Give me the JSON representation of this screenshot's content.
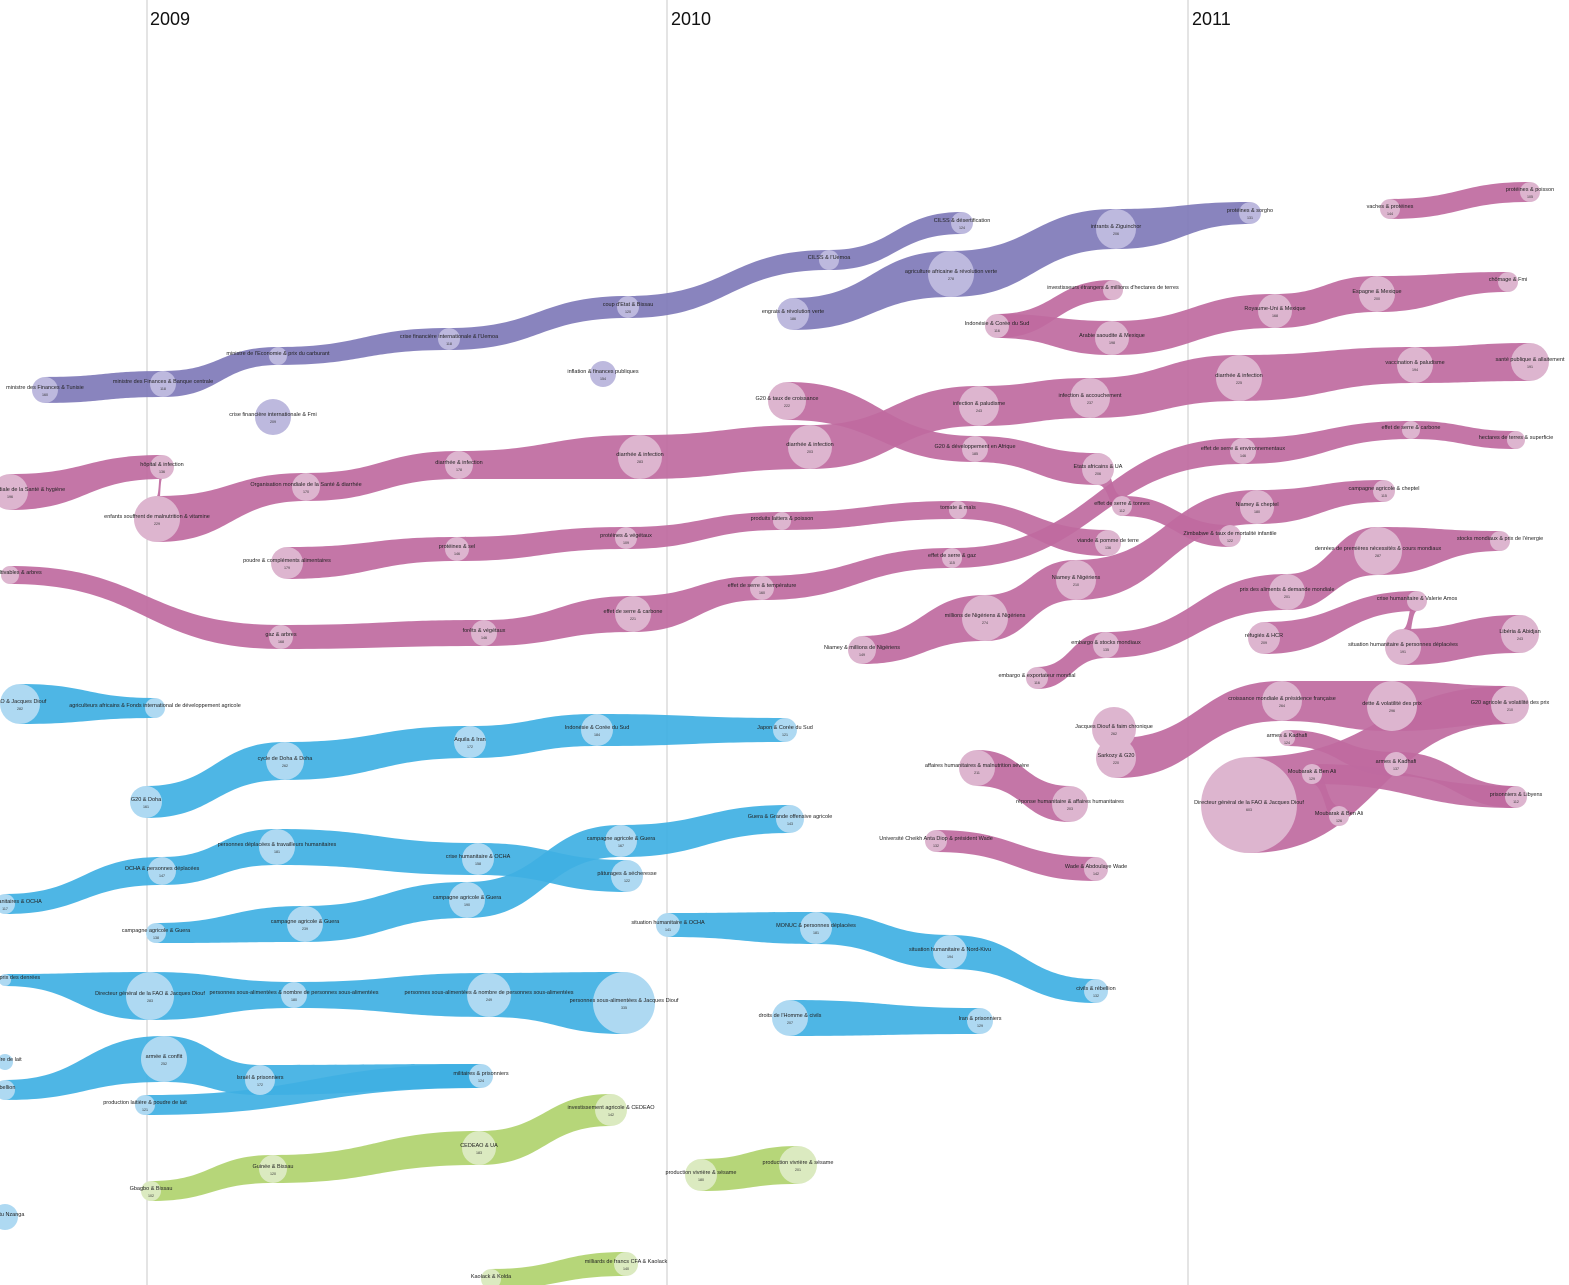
{
  "years": [
    "2009",
    "2010",
    "2011"
  ],
  "colors": {
    "purple": "#7f79b9",
    "purple_node": "#bdb9de",
    "magenta": "#bf6a9f",
    "magenta_node": "#ddb5cf",
    "blue": "#3fb0e3",
    "blue_node": "#aed9f2",
    "green": "#b0d36e",
    "green_node": "#dbeac0",
    "grid": "#c8c8c8"
  },
  "streams": [
    {
      "color": "purple",
      "nodes": [
        {
          "label": "ministre des Finances & Tunisie",
          "value": "160"
        },
        {
          "label": "ministre des Finances & Banque centrale",
          "value": "118"
        },
        {
          "label": "ministre de l'Economie & prix du carburant",
          "value": ""
        },
        {
          "label": "crise financière internationale & l'Uemoa",
          "value": "118"
        },
        {
          "label": "coup d'Etat & Bissau",
          "value": "120"
        },
        {
          "label": "CILSS & l'Uemoa",
          "value": ""
        },
        {
          "label": "CILSS & désertification",
          "value": "124"
        }
      ]
    },
    {
      "color": "purple",
      "nodes": [
        {
          "label": "crise financière internationale & Fmi",
          "value": "209"
        }
      ]
    },
    {
      "color": "purple",
      "nodes": [
        {
          "label": "inflation & finances publiques",
          "value": "154"
        }
      ]
    },
    {
      "color": "purple",
      "nodes": [
        {
          "label": "engrais & révolution verte",
          "value": "186"
        },
        {
          "label": "agriculture africaine & révolution verte",
          "value": "278"
        },
        {
          "label": "intrants & Ziguinchor",
          "value": "206"
        },
        {
          "label": "protéines & sorgho",
          "value": "131"
        }
      ]
    },
    {
      "color": "magenta",
      "nodes": [
        {
          "label": "vaches & protéines",
          "value": "144"
        },
        {
          "label": "protéines & poisson",
          "value": "105"
        }
      ]
    },
    {
      "color": "magenta",
      "nodes": [
        {
          "label": "investisseurs étrangers & millions d'hectares de terres",
          "value": ""
        },
        {
          "label": "Indonésie & Corée du Sud",
          "value": "116"
        },
        {
          "label": "Arabie saoudite & Mexique",
          "value": "198"
        },
        {
          "label": "Royaume-Uni & Mexique",
          "value": "168"
        },
        {
          "label": "Espagne & Mexique",
          "value": "200"
        },
        {
          "label": "chômage & Fmi",
          "value": ""
        }
      ]
    },
    {
      "color": "magenta",
      "nodes": [
        {
          "label": "Organisation mondiale de la Santé & hygiène",
          "value": "196"
        },
        {
          "label": "hôpital & infection",
          "value": "136"
        },
        {
          "label": "enfants souffrent de malnutrition & vitamine",
          "value": "229"
        },
        {
          "label": "Organisation mondiale de la Santé & diarrhée",
          "value": "170"
        },
        {
          "label": "diarrhée & infection",
          "value": "178"
        },
        {
          "label": "diarrhée & infection",
          "value": "283"
        },
        {
          "label": "diarrhée & infection",
          "value": "203"
        },
        {
          "label": "infection & paludisme",
          "value": "243"
        },
        {
          "label": "infection & accouchement",
          "value": "237"
        },
        {
          "label": "diarrhée & infection",
          "value": "225"
        },
        {
          "label": "vaccination & paludisme",
          "value": "194"
        },
        {
          "label": "santé publique & allaitement",
          "value": "191"
        }
      ]
    },
    {
      "color": "magenta",
      "nodes": [
        {
          "label": "G20 & taux de croissance",
          "value": "222"
        },
        {
          "label": "G20 & développement en Afrique",
          "value": "185"
        },
        {
          "label": "Etats africains & UA",
          "value": "206"
        },
        {
          "label": "effet de serre & tonnes",
          "value": "112"
        },
        {
          "label": "Zimbabwe & taux de mortalité infantile",
          "value": "122"
        }
      ]
    },
    {
      "color": "magenta",
      "nodes": [
        {
          "label": "poudre & compléments alimentaires",
          "value": "179"
        },
        {
          "label": "protéines & sel",
          "value": "146"
        },
        {
          "label": "protéines & végétaux",
          "value": "109"
        },
        {
          "label": "produits laitiers & poisson",
          "value": ""
        },
        {
          "label": "tomate & maïs",
          "value": ""
        },
        {
          "label": "viande & pomme de terre",
          "value": "136"
        }
      ]
    },
    {
      "color": "magenta",
      "nodes": [
        {
          "label": "terres cultivables & arbres",
          "value": ""
        },
        {
          "label": "gaz & arbres",
          "value": "168"
        },
        {
          "label": "forêts & végétaux",
          "value": "146"
        },
        {
          "label": "effet de serre & carbone",
          "value": "221"
        },
        {
          "label": "effet de serre & température",
          "value": "160"
        },
        {
          "label": "effet de serre & gaz",
          "value": "115"
        },
        {
          "label": "effet de serre & environnementaux",
          "value": "146"
        },
        {
          "label": "effet de serre & carbone",
          "value": ""
        },
        {
          "label": "hectares de terres & superficie",
          "value": ""
        }
      ]
    },
    {
      "color": "magenta",
      "nodes": [
        {
          "label": "Niamey & millions de Nigériens",
          "value": "149"
        },
        {
          "label": "millions de Nigériens & Nigériens",
          "value": "274"
        },
        {
          "label": "Niamey & Nigériens",
          "value": "210"
        },
        {
          "label": "Niamey & cheptel",
          "value": "180"
        },
        {
          "label": "campagne agricole & cheptel",
          "value": "115"
        }
      ]
    },
    {
      "color": "magenta",
      "nodes": [
        {
          "label": "embargo & exportateur mondial",
          "value": "116"
        },
        {
          "label": "embargo & stocks mondiaux",
          "value": "135"
        },
        {
          "label": "prix des aliments & demande mondiale",
          "value": "201"
        },
        {
          "label": "denrées de premières nécessités & cours mondiaux",
          "value": "287"
        },
        {
          "label": "stocks mondiaux & prix de l'énergie",
          "value": ""
        }
      ]
    },
    {
      "color": "magenta",
      "nodes": [
        {
          "label": "réfugiés & HCR",
          "value": "209"
        },
        {
          "label": "crise humanitaire & Valerie Amos",
          "value": ""
        },
        {
          "label": "situation humanitaire & personnes déplacées",
          "value": "191"
        },
        {
          "label": "Libéria & Abidjan",
          "value": "243"
        }
      ]
    },
    {
      "color": "magenta",
      "nodes": [
        {
          "label": "Jacques Diouf & faim chronique",
          "value": "262"
        },
        {
          "label": "Sarkozy & G20",
          "value": "220"
        },
        {
          "label": "croissance mondiale & présidence française",
          "value": "264"
        },
        {
          "label": "dette & volatilité des prix",
          "value": "296"
        },
        {
          "label": "G20 agricole & volatilité des prix",
          "value": "210"
        },
        {
          "label": "Directeur général de la FAO & Jacques Diouf",
          "value": "603"
        }
      ]
    },
    {
      "color": "magenta",
      "nodes": [
        {
          "label": "armes & Kadhafi",
          "value": "124"
        },
        {
          "label": "armes & Kadhafi",
          "value": "137"
        },
        {
          "label": "prisonniers & Libyens",
          "value": "112"
        },
        {
          "label": "Moubarak & Ben Ali",
          "value": "129"
        },
        {
          "label": "Moubarak & Ben Ali",
          "value": "126"
        }
      ]
    },
    {
      "color": "magenta",
      "nodes": [
        {
          "label": "affaires humanitaires & malnutrition sévère",
          "value": "211"
        },
        {
          "label": "réponse humanitaire & affaires humanitaires",
          "value": "203"
        }
      ]
    },
    {
      "color": "magenta",
      "nodes": [
        {
          "label": "Université Cheikh Anta Diop & président Wade",
          "value": "132"
        },
        {
          "label": "Wade & Abdoulaye Wade",
          "value": "142"
        }
      ]
    },
    {
      "color": "blue",
      "nodes": [
        {
          "label": "FAO & Jacques Diouf",
          "value": "282"
        },
        {
          "label": "agriculteurs africains & Fonds international de développement agricole",
          "value": ""
        }
      ]
    },
    {
      "color": "blue",
      "nodes": [
        {
          "label": "G20 & Doha",
          "value": "161"
        },
        {
          "label": "cycle de Doha & Doha",
          "value": "262"
        },
        {
          "label": "Aquila & Iran",
          "value": "172"
        },
        {
          "label": "Indonésie & Corée du Sud",
          "value": "184"
        },
        {
          "label": "Japon & Corée du Sud",
          "value": "121"
        }
      ]
    },
    {
      "color": "blue",
      "nodes": [
        {
          "label": "affaires humanitaires & OCHA",
          "value": "117"
        },
        {
          "label": "OCHA & personnes déplacées",
          "value": "147"
        },
        {
          "label": "personnes déplacées & travailleurs humanitaires",
          "value": "181"
        },
        {
          "label": "crise humanitaire & OCHA",
          "value": "158"
        },
        {
          "label": "pâturages & sécheresse",
          "value": "122"
        }
      ]
    },
    {
      "color": "blue",
      "nodes": [
        {
          "label": "campagne agricole & Guera",
          "value": "138"
        },
        {
          "label": "campagne agricole & Guera",
          "value": "239"
        },
        {
          "label": "campagne agricole & Guera",
          "value": "190"
        },
        {
          "label": "campagne agricole & Guera",
          "value": "167"
        },
        {
          "label": "Guera & Grande offensive agricole",
          "value": "143"
        }
      ]
    },
    {
      "color": "blue",
      "nodes": [
        {
          "label": "situation humanitaire & OCHA",
          "value": "141"
        },
        {
          "label": "MONUC & personnes déplacées",
          "value": "181"
        },
        {
          "label": "situation humanitaire & Nord-Kivu",
          "value": "194"
        },
        {
          "label": "civils & rébellion",
          "value": "132"
        }
      ]
    },
    {
      "color": "blue",
      "nodes": [
        {
          "label": "hausse des prix des denrées",
          "value": ""
        },
        {
          "label": "Directeur général de la FAO & Jacques Diouf",
          "value": "283"
        },
        {
          "label": "personnes sous-alimentées & nombre de personnes sous-alimentées",
          "value": "180"
        },
        {
          "label": "personnes sous-alimentées & nombre de personnes sous-alimentées",
          "value": "249"
        },
        {
          "label": "personnes sous-alimentées & Jacques Diouf",
          "value": "335"
        }
      ]
    },
    {
      "color": "blue",
      "nodes": [
        {
          "label": "droits de l'Homme & civils",
          "value": "207"
        },
        {
          "label": "Iran & prisonniers",
          "value": "129"
        }
      ]
    },
    {
      "color": "blue",
      "nodes": [
        {
          "label": "poudre de lait",
          "value": ""
        },
        {
          "label": "rébellion",
          "value": ""
        },
        {
          "label": "armée & conflit",
          "value": "252"
        },
        {
          "label": "Israël & prisonniers",
          "value": "172"
        },
        {
          "label": "militaires & prisonniers",
          "value": "124"
        },
        {
          "label": "production laitière & poudre de lait",
          "value": "121"
        }
      ]
    },
    {
      "color": "blue",
      "nodes": [
        {
          "label": "Mobutu Nzanga",
          "value": ""
        }
      ]
    },
    {
      "color": "green",
      "nodes": [
        {
          "label": "Gbagbo & Bissau",
          "value": "102"
        },
        {
          "label": "Guinée & Bissau",
          "value": "120"
        },
        {
          "label": "CEDEAO & UA",
          "value": "183"
        },
        {
          "label": "investissement agricole & CEDEAO",
          "value": "142"
        }
      ]
    },
    {
      "color": "green",
      "nodes": [
        {
          "label": "production vivrière & sésame",
          "value": "180"
        },
        {
          "label": "production vivrière & sésame",
          "value": "201"
        }
      ]
    },
    {
      "color": "green",
      "nodes": [
        {
          "label": "Kaolack & Kolda",
          "value": ""
        },
        {
          "label": "milliards de francs CFA & Kaolack",
          "value": "140"
        }
      ]
    }
  ]
}
